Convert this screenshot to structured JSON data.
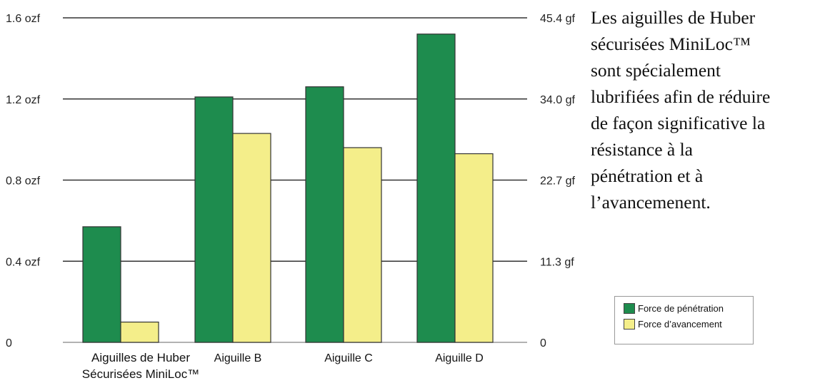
{
  "chart_data": {
    "type": "bar",
    "categories": [
      "Aiguilles de Huber Sécurisées MiniLoc™",
      "Aiguille  B",
      "Aiguille C",
      "Aiguille D"
    ],
    "category_label_lines": [
      [
        "Aiguilles de Huber",
        "Sécurisées MiniLoc™"
      ],
      [
        "Aiguille  B"
      ],
      [
        "Aiguille C"
      ],
      [
        "Aiguille D"
      ]
    ],
    "series": [
      {
        "name": "Force de pénétration",
        "color": "#1e8c4e",
        "values": [
          0.57,
          1.21,
          1.26,
          1.52
        ]
      },
      {
        "name": "Force d’avancement",
        "color": "#f4ee8a",
        "values": [
          0.1,
          1.03,
          0.96,
          0.93
        ]
      }
    ],
    "ylim": [
      0,
      1.6
    ],
    "left_axis_ticks": [
      {
        "value": 0,
        "label": "0"
      },
      {
        "value": 0.4,
        "label": "0.4 ozf"
      },
      {
        "value": 0.8,
        "label": "0.8 ozf"
      },
      {
        "value": 1.2,
        "label": "1.2 ozf"
      },
      {
        "value": 1.6,
        "label": "1.6 ozf"
      }
    ],
    "right_axis_ticks": [
      {
        "value": 0,
        "label": "0"
      },
      {
        "value": 0.4,
        "label": "11.3 gf"
      },
      {
        "value": 0.8,
        "label": "22.7 gf"
      },
      {
        "value": 1.2,
        "label": "34.0 gf"
      },
      {
        "value": 1.6,
        "label": "45.4 gf"
      }
    ],
    "grid": true,
    "legend_position": "bottom-right"
  },
  "description_lines": [
    "Les aiguilles de Huber",
    "sécurisées MiniLoc™",
    "sont spécialement",
    "lubrifiées afin de réduire",
    "de façon significative la",
    "résistance à la",
    "pénétration  et à",
    "l’avancemenent."
  ]
}
